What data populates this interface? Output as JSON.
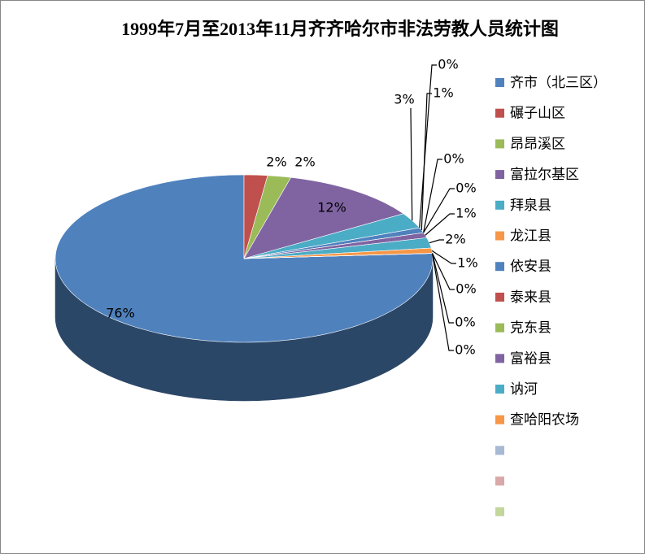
{
  "chart_data": {
    "type": "pie3d",
    "title": "1999年7月至2013年11月齐齐哈尔市非法劳教人员统计图",
    "categories": [
      "齐市（北三区）",
      "碾子山区",
      "昂昂溪区",
      "富拉尔基区",
      "拜泉县",
      "龙江县",
      "依安县",
      "泰来县",
      "克东县",
      "富裕县",
      "讷河",
      "查哈阳农场",
      null,
      null,
      null
    ],
    "values": [
      76,
      2,
      2,
      12,
      3,
      0,
      1,
      0,
      0,
      1,
      2,
      1,
      0,
      0,
      0
    ],
    "value_labels": [
      "76%",
      "2%",
      "2%",
      "12%",
      "3%",
      "0%",
      "1%",
      "0%",
      "0%",
      "1%",
      "2%",
      "1%",
      "0%",
      "0%",
      "0%"
    ],
    "colors": [
      "#4f81bd",
      "#c0504d",
      "#9bbb59",
      "#8064a2",
      "#4bacc6",
      "#f79646",
      "#4f81bd",
      "#c0504d",
      "#9bbb59",
      "#8064a2",
      "#4bacc6",
      "#f79646",
      "#a7b9d3",
      "#d8a9a8",
      "#c3d69b"
    ],
    "legend": "right"
  }
}
